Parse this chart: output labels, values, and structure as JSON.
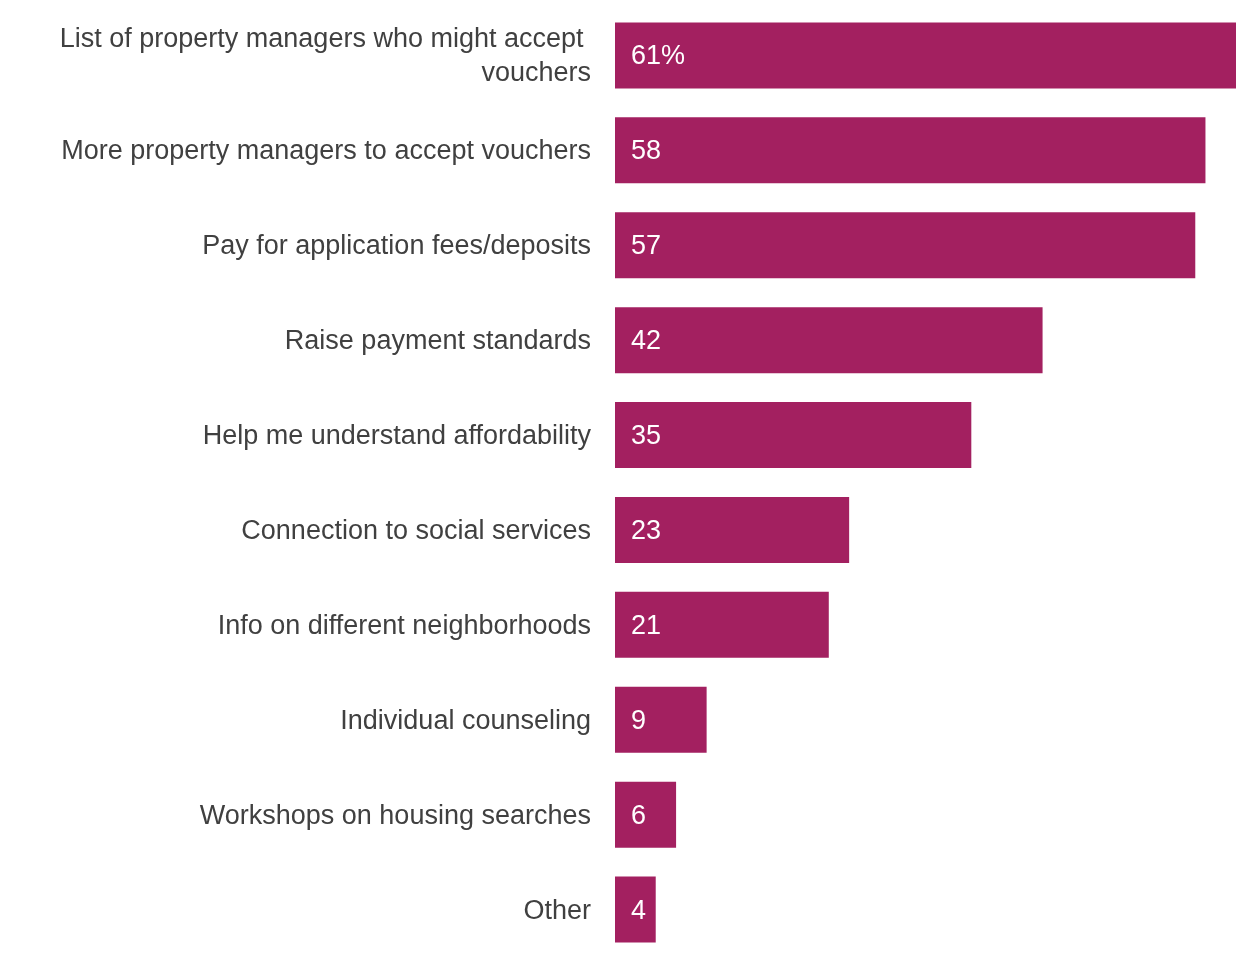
{
  "chart_data": {
    "type": "bar",
    "orientation": "horizontal",
    "categories": [
      "List of property managers who might accept vouchers",
      "More property managers to accept vouchers",
      "Pay for application fees/deposits",
      "Raise payment standards",
      "Help me understand affordability",
      "Connection to social services",
      "Info on different neighborhoods",
      "Individual counseling",
      "Workshops on housing searches",
      "Other"
    ],
    "values": [
      61,
      58,
      57,
      42,
      35,
      23,
      21,
      9,
      6,
      4
    ],
    "value_labels": [
      "61%",
      "58",
      "57",
      "42",
      "35",
      "23",
      "21",
      "9",
      "6",
      "4"
    ],
    "color": "#a32060"
  }
}
